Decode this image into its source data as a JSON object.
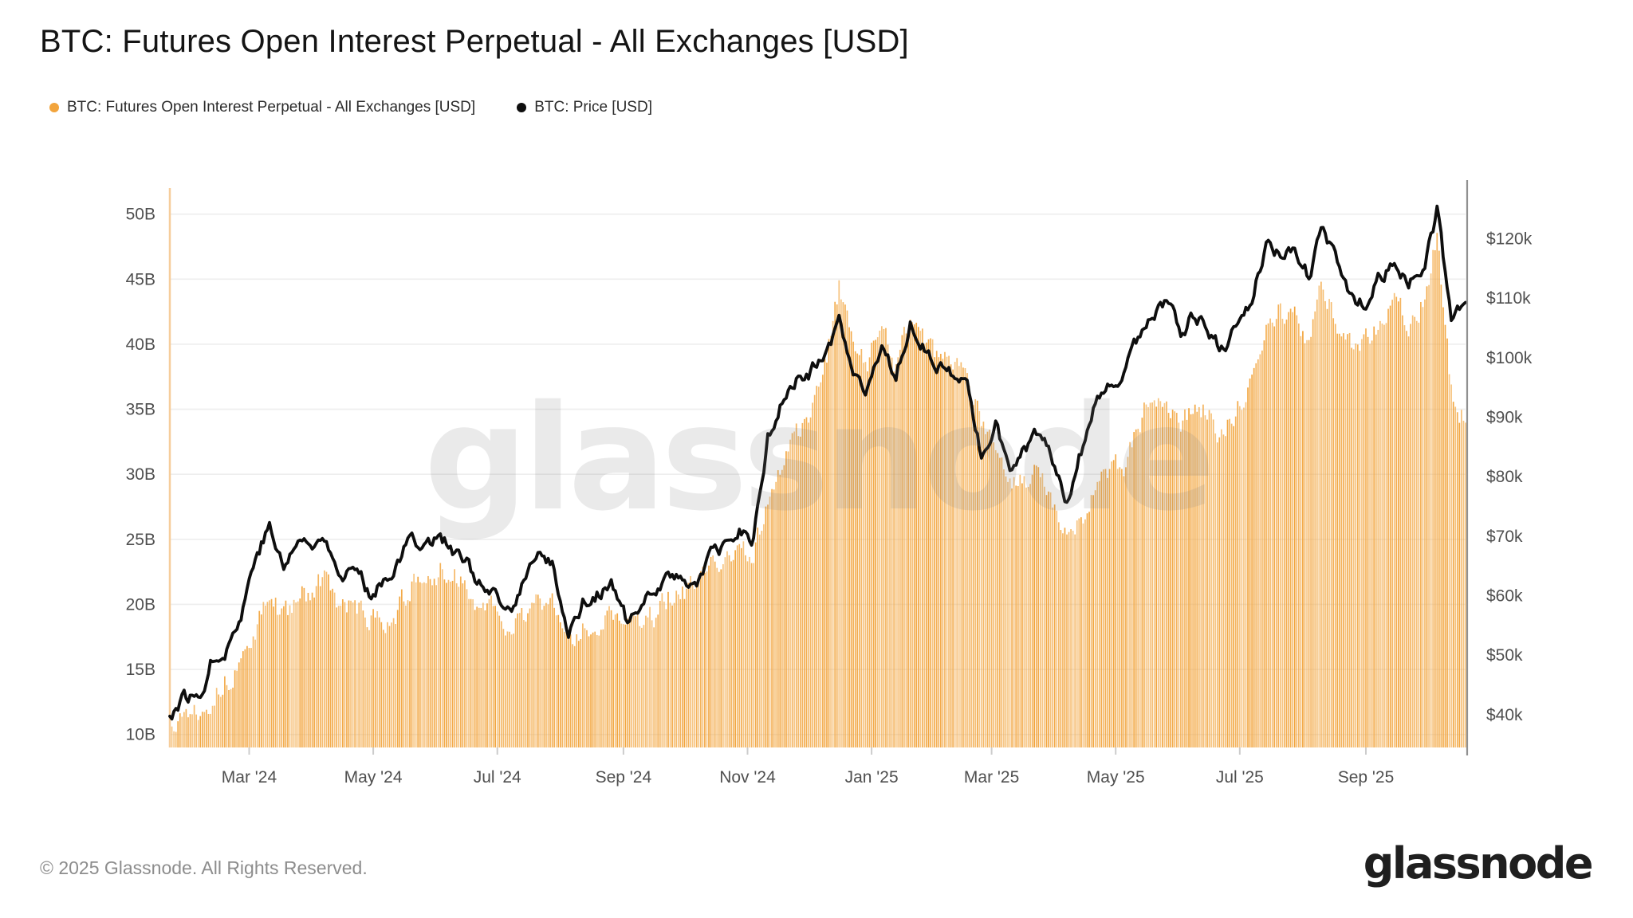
{
  "header": {
    "title": "BTC: Futures Open Interest Perpetual - All Exchanges [USD]"
  },
  "legend": [
    {
      "label": "BTC: Futures Open Interest Perpetual - All Exchanges [USD]",
      "color": "#f2a43c"
    },
    {
      "label": "BTC: Price [USD]",
      "color": "#0e0e0e"
    }
  ],
  "watermark": "glassnode",
  "footer": {
    "copyright": "© 2025 Glassnode. All Rights Reserved.",
    "brand": "glassnode"
  },
  "colors": {
    "bar": "#f2a43c",
    "line": "#0e0e0e",
    "gridline": "#eeeeee",
    "left_axis_line": "#f6cd9b",
    "right_axis_line": "#909090",
    "tick_text": "#4f4f4f",
    "background": "#ffffff"
  },
  "chart_data": {
    "type": "bar+line combo, dual axis, daily frequency",
    "title": "BTC: Futures Open Interest Perpetual - All Exchanges [USD]",
    "x_axis": {
      "grid": false,
      "ticks": [
        {
          "label": "Mar '24",
          "date": "2024-03-01"
        },
        {
          "label": "May '24",
          "date": "2024-05-01"
        },
        {
          "label": "Jul '24",
          "date": "2024-07-01"
        },
        {
          "label": "Sep '24",
          "date": "2024-09-01"
        },
        {
          "label": "Nov '24",
          "date": "2024-11-01"
        },
        {
          "label": "Jan '25",
          "date": "2025-01-01"
        },
        {
          "label": "Mar '25",
          "date": "2025-03-01"
        },
        {
          "label": "May '25",
          "date": "2025-05-01"
        },
        {
          "label": "Jul '25",
          "date": "2025-07-01"
        },
        {
          "label": "Sep '25",
          "date": "2025-09-01"
        }
      ]
    },
    "left_axis": {
      "title": "Open Interest (USD billions)",
      "ticks": [
        "50B",
        "45B",
        "40B",
        "35B",
        "30B",
        "25B",
        "20B",
        "15B",
        "10B"
      ],
      "tick_values": [
        50,
        45,
        40,
        35,
        30,
        25,
        20,
        15,
        10
      ],
      "range": [
        9,
        52
      ],
      "grid": true
    },
    "right_axis": {
      "title": "BTC Price (USD thousands)",
      "ticks": [
        "$120k",
        "$110k",
        "$100k",
        "$90k",
        "$80k",
        "$70k",
        "$60k",
        "$50k",
        "$40k"
      ],
      "tick_values": [
        120,
        110,
        100,
        90,
        80,
        70,
        60,
        50,
        40
      ],
      "range": [
        34.5,
        128.5
      ],
      "grid": false
    },
    "legend_position": "top-left",
    "dates": [
      "2024-01-22",
      "2024-01-29",
      "2024-02-05",
      "2024-02-12",
      "2024-02-19",
      "2024-02-26",
      "2024-03-04",
      "2024-03-11",
      "2024-03-18",
      "2024-03-25",
      "2024-04-01",
      "2024-04-08",
      "2024-04-15",
      "2024-04-22",
      "2024-04-29",
      "2024-05-06",
      "2024-05-13",
      "2024-05-20",
      "2024-05-27",
      "2024-06-03",
      "2024-06-10",
      "2024-06-17",
      "2024-06-24",
      "2024-07-01",
      "2024-07-08",
      "2024-07-15",
      "2024-07-22",
      "2024-07-29",
      "2024-08-05",
      "2024-08-12",
      "2024-08-19",
      "2024-08-26",
      "2024-09-02",
      "2024-09-09",
      "2024-09-16",
      "2024-09-23",
      "2024-09-30",
      "2024-10-07",
      "2024-10-14",
      "2024-10-21",
      "2024-10-28",
      "2024-11-04",
      "2024-11-11",
      "2024-11-18",
      "2024-11-25",
      "2024-12-02",
      "2024-12-09",
      "2024-12-16",
      "2024-12-23",
      "2024-12-30",
      "2025-01-06",
      "2025-01-13",
      "2025-01-20",
      "2025-01-27",
      "2025-02-03",
      "2025-02-10",
      "2025-02-17",
      "2025-02-24",
      "2025-03-03",
      "2025-03-10",
      "2025-03-17",
      "2025-03-24",
      "2025-03-31",
      "2025-04-07",
      "2025-04-14",
      "2025-04-21",
      "2025-04-28",
      "2025-05-05",
      "2025-05-12",
      "2025-05-19",
      "2025-05-26",
      "2025-06-02",
      "2025-06-09",
      "2025-06-16",
      "2025-06-23",
      "2025-06-30",
      "2025-07-07",
      "2025-07-14",
      "2025-07-21",
      "2025-07-28",
      "2025-08-04",
      "2025-08-11",
      "2025-08-18",
      "2025-08-25",
      "2025-09-01",
      "2025-09-08",
      "2025-09-15",
      "2025-09-22",
      "2025-09-29",
      "2025-10-06",
      "2025-10-13",
      "2025-10-20"
    ],
    "series": [
      {
        "name": "BTC: Futures Open Interest Perpetual - All Exchanges [USD]",
        "type": "bar",
        "axis": "left",
        "unit": "USD billions",
        "color": "#f2a43c",
        "values": [
          11.2,
          11.8,
          12.2,
          13.0,
          14.2,
          15.5,
          18.0,
          20.5,
          19.0,
          20.5,
          21.0,
          22.0,
          19.5,
          20.0,
          18.5,
          19.0,
          19.5,
          21.5,
          21.0,
          22.5,
          22.0,
          21.0,
          20.0,
          19.0,
          17.8,
          19.5,
          20.5,
          20.0,
          16.8,
          18.0,
          18.8,
          19.5,
          18.5,
          18.2,
          19.2,
          20.5,
          21.0,
          21.2,
          22.8,
          23.5,
          24.5,
          24.0,
          28.0,
          30.5,
          33.0,
          34.5,
          38.0,
          44.2,
          39.5,
          38.5,
          41.5,
          38.5,
          42.5,
          40.5,
          39.0,
          38.5,
          37.5,
          33.5,
          31.5,
          29.0,
          29.5,
          30.5,
          28.0,
          25.0,
          26.5,
          29.0,
          30.0,
          30.5,
          33.5,
          36.5,
          35.5,
          34.0,
          35.5,
          34.5,
          33.0,
          35.0,
          37.0,
          41.5,
          42.5,
          42.0,
          40.5,
          44.5,
          42.0,
          40.0,
          40.5,
          42.0,
          43.0,
          41.5,
          43.5,
          48.0,
          36.5,
          34.0
        ]
      },
      {
        "name": "BTC: Price [USD]",
        "type": "line",
        "axis": "right",
        "unit": "USD thousands",
        "color": "#0e0e0e",
        "values": [
          39.9,
          43.0,
          42.8,
          49.5,
          51.5,
          56.5,
          67.0,
          71.5,
          64.5,
          69.5,
          68.0,
          70.5,
          63.5,
          64.5,
          60.5,
          63.0,
          65.5,
          70.0,
          68.5,
          70.5,
          67.0,
          65.0,
          61.0,
          59.0,
          56.5,
          64.0,
          67.0,
          64.5,
          53.5,
          59.0,
          60.5,
          61.5,
          56.0,
          56.5,
          61.5,
          63.5,
          62.5,
          62.5,
          67.0,
          67.5,
          71.0,
          69.5,
          86.5,
          92.5,
          96.0,
          97.5,
          100.5,
          106.0,
          95.5,
          94.5,
          100.5,
          96.5,
          106.5,
          102.0,
          98.5,
          96.5,
          96.0,
          83.0,
          90.0,
          80.5,
          84.0,
          87.0,
          83.0,
          76.5,
          84.5,
          92.0,
          94.5,
          96.5,
          103.5,
          106.5,
          109.5,
          104.5,
          107.5,
          104.5,
          101.0,
          107.5,
          109.5,
          119.5,
          117.5,
          117.0,
          113.5,
          122.5,
          115.0,
          110.0,
          109.5,
          113.5,
          115.5,
          112.0,
          114.5,
          124.5,
          106.0,
          110.0
        ]
      }
    ]
  }
}
